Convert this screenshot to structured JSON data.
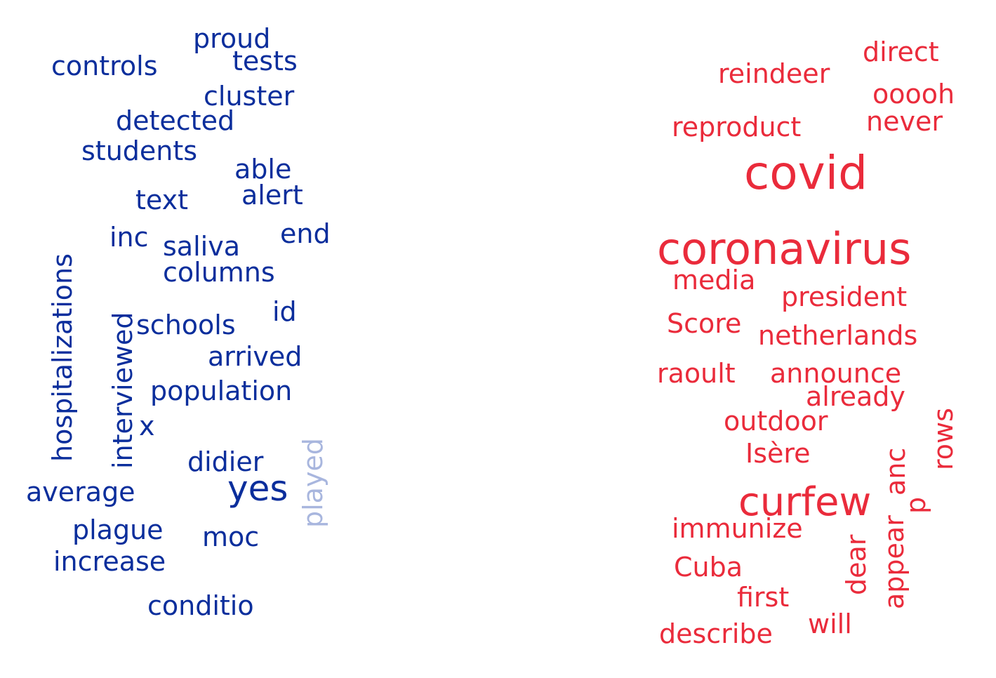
{
  "colors": {
    "left_cloud": "#0b2e9c",
    "left_cloud_faded": "#a8b6de",
    "right_cloud": "#ea2b3b"
  },
  "left_cloud": {
    "words": [
      "proud",
      "tests",
      "controls",
      "cluster",
      "detected",
      "students",
      "able",
      "alert",
      "text",
      "hospitalizations",
      "inc",
      "saliva",
      "end",
      "columns",
      "interviewed",
      "id",
      "schools",
      "arrived",
      "population",
      "x",
      "didier",
      "played",
      "yes",
      "average",
      "plague",
      "moc",
      "increase",
      "conditio"
    ]
  },
  "right_cloud": {
    "words": [
      "direct",
      "reindeer",
      "ooooh",
      "reproduct",
      "never",
      "covid",
      "coronavirus",
      "media",
      "president",
      "Score",
      "netherlands",
      "raoult",
      "announce",
      "already",
      "rows",
      "outdoor",
      "Isère",
      "anc",
      "curfew",
      "p",
      "immunize",
      "appear",
      "dear",
      "Cuba",
      "first",
      "will",
      "describe"
    ]
  }
}
